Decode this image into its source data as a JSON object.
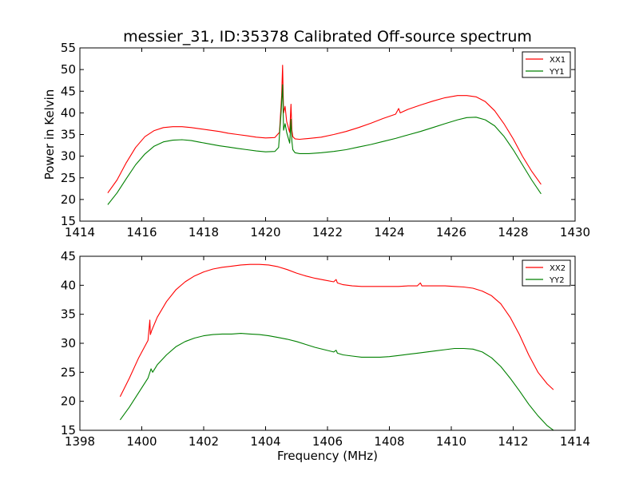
{
  "colors": {
    "red": "#ff0000",
    "green": "#008000"
  },
  "chart_data": [
    {
      "type": "line",
      "title": "messier_31, ID:35378 Calibrated Off-source spectrum",
      "xlabel": "",
      "ylabel": "Power in Kelvin",
      "xlim": [
        1414,
        1430
      ],
      "ylim": [
        15,
        55
      ],
      "xticks": [
        "1414",
        "1416",
        "1418",
        "1420",
        "1422",
        "1424",
        "1426",
        "1428",
        "1430"
      ],
      "yticks": [
        "15",
        "20",
        "25",
        "30",
        "35",
        "40",
        "45",
        "50",
        "55"
      ],
      "legend": "top-right",
      "series": [
        {
          "name": "XX1",
          "color": "#ff0000",
          "x": [
            1414.9,
            1415.2,
            1415.5,
            1415.8,
            1416.1,
            1416.4,
            1416.7,
            1417.0,
            1417.3,
            1417.6,
            1417.9,
            1418.2,
            1418.5,
            1418.8,
            1419.1,
            1419.4,
            1419.7,
            1420.0,
            1420.3,
            1420.45,
            1420.52,
            1420.55,
            1420.58,
            1420.63,
            1420.68,
            1420.72,
            1420.78,
            1420.82,
            1420.85,
            1420.88,
            1420.95,
            1421.1,
            1421.4,
            1421.8,
            1422.2,
            1422.6,
            1423.0,
            1423.4,
            1423.8,
            1424.2,
            1424.3,
            1424.35,
            1424.6,
            1425.0,
            1425.4,
            1425.8,
            1426.2,
            1426.5,
            1426.8,
            1427.1,
            1427.4,
            1427.7,
            1428.0,
            1428.3,
            1428.6,
            1428.9
          ],
          "y": [
            21.5,
            24.5,
            28.5,
            32.0,
            34.5,
            35.9,
            36.6,
            36.8,
            36.8,
            36.6,
            36.3,
            36.0,
            35.7,
            35.3,
            35.0,
            34.7,
            34.4,
            34.2,
            34.3,
            35.5,
            44.0,
            51.0,
            40.0,
            41.5,
            38.0,
            37.0,
            35.5,
            42.0,
            36.0,
            34.5,
            34.0,
            33.9,
            34.1,
            34.4,
            35.0,
            35.7,
            36.6,
            37.6,
            38.7,
            39.7,
            41.0,
            40.0,
            40.8,
            41.8,
            42.7,
            43.5,
            44.0,
            44.0,
            43.7,
            42.6,
            40.5,
            37.5,
            34.0,
            30.0,
            26.5,
            23.5
          ]
        },
        {
          "name": "YY1",
          "color": "#008000",
          "x": [
            1414.9,
            1415.2,
            1415.5,
            1415.8,
            1416.1,
            1416.4,
            1416.7,
            1417.0,
            1417.3,
            1417.6,
            1417.9,
            1418.2,
            1418.5,
            1418.8,
            1419.1,
            1419.4,
            1419.7,
            1420.0,
            1420.3,
            1420.42,
            1420.5,
            1420.55,
            1420.58,
            1420.63,
            1420.68,
            1420.72,
            1420.78,
            1420.82,
            1420.85,
            1420.88,
            1420.95,
            1421.1,
            1421.4,
            1421.8,
            1422.2,
            1422.6,
            1423.0,
            1423.4,
            1423.8,
            1424.2,
            1424.6,
            1425.0,
            1425.4,
            1425.8,
            1426.2,
            1426.5,
            1426.8,
            1427.1,
            1427.4,
            1427.7,
            1428.0,
            1428.3,
            1428.6,
            1428.9
          ],
          "y": [
            18.8,
            21.5,
            24.8,
            28.0,
            30.5,
            32.3,
            33.3,
            33.7,
            33.8,
            33.6,
            33.2,
            32.8,
            32.4,
            32.1,
            31.8,
            31.5,
            31.2,
            31.0,
            31.1,
            32.0,
            40.0,
            46.5,
            36.0,
            37.5,
            35.5,
            34.5,
            33.0,
            38.5,
            33.5,
            31.5,
            30.8,
            30.6,
            30.6,
            30.8,
            31.1,
            31.5,
            32.1,
            32.7,
            33.4,
            34.1,
            34.9,
            35.7,
            36.6,
            37.5,
            38.4,
            38.9,
            39.0,
            38.4,
            37.0,
            34.6,
            31.5,
            28.0,
            24.5,
            21.3
          ]
        }
      ]
    },
    {
      "type": "line",
      "title": "",
      "xlabel": "Frequency (MHz)",
      "ylabel": "",
      "xlim": [
        1398,
        1414
      ],
      "ylim": [
        15,
        45
      ],
      "xticks": [
        "1398",
        "1400",
        "1402",
        "1404",
        "1406",
        "1408",
        "1410",
        "1412",
        "1414"
      ],
      "yticks": [
        "15",
        "20",
        "25",
        "30",
        "35",
        "40",
        "45"
      ],
      "legend": "top-right",
      "series": [
        {
          "name": "XX2",
          "color": "#ff0000",
          "x": [
            1399.3,
            1399.6,
            1399.9,
            1400.2,
            1400.26,
            1400.28,
            1400.32,
            1400.5,
            1400.8,
            1401.1,
            1401.4,
            1401.7,
            1402.0,
            1402.3,
            1402.6,
            1402.9,
            1403.2,
            1403.5,
            1403.8,
            1404.1,
            1404.4,
            1404.7,
            1405.0,
            1405.3,
            1405.6,
            1405.9,
            1406.2,
            1406.28,
            1406.32,
            1406.5,
            1406.8,
            1407.1,
            1407.4,
            1407.7,
            1408.0,
            1408.3,
            1408.6,
            1408.9,
            1409.0,
            1409.05,
            1409.2,
            1409.5,
            1409.8,
            1410.1,
            1410.4,
            1410.7,
            1411.0,
            1411.3,
            1411.6,
            1411.9,
            1412.2,
            1412.5,
            1412.8,
            1413.1,
            1413.3
          ],
          "y": [
            20.8,
            24.0,
            27.5,
            30.5,
            34.0,
            31.5,
            32.2,
            34.5,
            37.2,
            39.2,
            40.6,
            41.6,
            42.3,
            42.8,
            43.1,
            43.3,
            43.5,
            43.6,
            43.6,
            43.5,
            43.2,
            42.7,
            42.1,
            41.6,
            41.2,
            40.9,
            40.6,
            41.0,
            40.4,
            40.1,
            39.9,
            39.8,
            39.8,
            39.8,
            39.8,
            39.8,
            39.9,
            39.9,
            40.4,
            39.9,
            39.9,
            39.9,
            39.9,
            39.8,
            39.7,
            39.5,
            39.0,
            38.2,
            36.8,
            34.5,
            31.5,
            28.0,
            25.0,
            23.0,
            22.0
          ]
        },
        {
          "name": "YY2",
          "color": "#008000",
          "x": [
            1399.3,
            1399.6,
            1399.9,
            1400.2,
            1400.3,
            1400.35,
            1400.5,
            1400.8,
            1401.1,
            1401.4,
            1401.7,
            1402.0,
            1402.3,
            1402.6,
            1402.9,
            1403.2,
            1403.5,
            1403.8,
            1404.1,
            1404.4,
            1404.7,
            1405.0,
            1405.3,
            1405.6,
            1405.9,
            1406.2,
            1406.28,
            1406.32,
            1406.5,
            1406.8,
            1407.1,
            1407.4,
            1407.7,
            1408.0,
            1408.3,
            1408.6,
            1408.9,
            1409.2,
            1409.5,
            1409.8,
            1410.1,
            1410.4,
            1410.7,
            1411.0,
            1411.3,
            1411.6,
            1411.9,
            1412.2,
            1412.5,
            1412.8,
            1413.1,
            1413.3
          ],
          "y": [
            16.8,
            19.0,
            21.5,
            24.0,
            25.6,
            25.0,
            26.3,
            28.0,
            29.4,
            30.3,
            30.9,
            31.3,
            31.5,
            31.6,
            31.6,
            31.7,
            31.6,
            31.5,
            31.3,
            31.0,
            30.7,
            30.3,
            29.8,
            29.3,
            28.9,
            28.5,
            28.8,
            28.3,
            28.0,
            27.8,
            27.6,
            27.6,
            27.6,
            27.7,
            27.9,
            28.1,
            28.3,
            28.5,
            28.7,
            28.9,
            29.1,
            29.1,
            29.0,
            28.5,
            27.5,
            26.0,
            24.0,
            21.8,
            19.5,
            17.5,
            15.8,
            15.0
          ]
        }
      ]
    }
  ]
}
